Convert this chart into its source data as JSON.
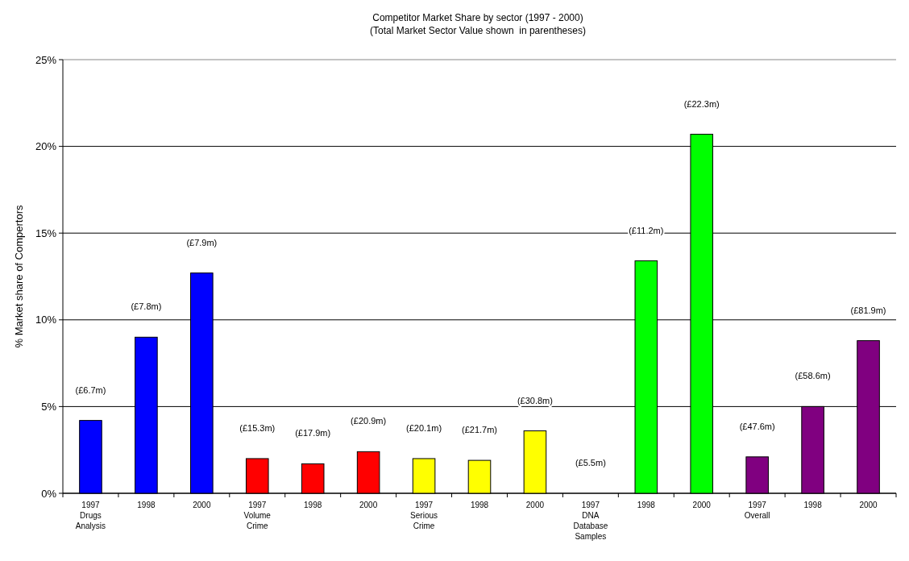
{
  "chart_data": {
    "type": "bar",
    "title": "Competitor Market Share by sector (1997 - 2000)",
    "subtitle": "(Total Market Sector Value shown  in parentheses)",
    "ylabel": "% Market share of Compertors",
    "categories": [
      "1997\nDrugs\nAnalysis",
      "1998",
      "2000",
      "1997\nVolume\nCrime",
      "1998",
      "2000",
      "1997\nSerious\nCrime",
      "1998",
      "2000",
      "1997\nDNA\nDatabase\nSamples",
      "1998",
      "2000",
      "1997\nOverall",
      "1998",
      "2000"
    ],
    "values": [
      4.2,
      9.0,
      12.7,
      2.0,
      1.7,
      2.4,
      2.0,
      1.9,
      3.6,
      0,
      13.4,
      20.7,
      2.1,
      5.0,
      8.8
    ],
    "colors": [
      "#0000ff",
      "#0000ff",
      "#0000ff",
      "#ff0000",
      "#ff0000",
      "#ff0000",
      "#ffff00",
      "#ffff00",
      "#ffff00",
      "#00ff00",
      "#00ff00",
      "#00ff00",
      "#800080",
      "#800080",
      "#800080"
    ],
    "annotations": [
      "(£6.7m)",
      "(£7.8m)",
      "(£7.9m)",
      "(£15.3m)",
      "(£17.9m)",
      "(£20.9m)",
      "(£20.1m)",
      "(£21.7m)",
      "(£30.8m)",
      "(£5.5m)",
      "(£11.2m)",
      "(£22.3m)",
      "(£47.6m)",
      "(£58.6m)",
      "(£81.9m)"
    ],
    "ylim": [
      0,
      25
    ],
    "yticks": [
      {
        "value": 0,
        "label": "0%"
      },
      {
        "value": 5,
        "label": "5%"
      },
      {
        "value": 10,
        "label": "10%"
      },
      {
        "value": 15,
        "label": "15%"
      },
      {
        "value": 20,
        "label": "20%"
      },
      {
        "value": 25,
        "label": "25%"
      }
    ],
    "grid": "y"
  }
}
